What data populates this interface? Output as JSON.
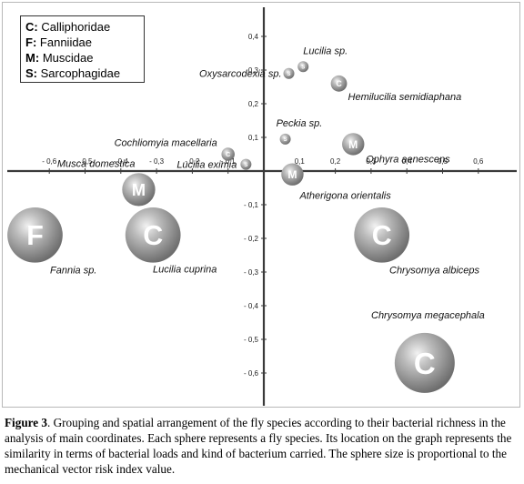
{
  "legend": {
    "items": [
      {
        "code": "C",
        "name": "Calliphoridae"
      },
      {
        "code": "F",
        "name": "Fanniidae"
      },
      {
        "code": "M",
        "name": "Muscidae"
      },
      {
        "code": "S",
        "name": "Sarcophagidae"
      }
    ]
  },
  "caption": {
    "label": "Figure 3",
    "text": ". Grouping and spatial arrangement of the fly species according to their bacterial richness in the analysis of main coordinates. Each sphere represents a fly species. Its location on the graph represents the similarity in terms of bacterial loads and kind of bacterium carried. The sphere size is proportional to the mechanical vector risk index value."
  },
  "chart_data": {
    "type": "scatter",
    "xlim": [
      -0.7,
      0.7
    ],
    "ylim": [
      -0.7,
      0.45
    ],
    "x_ticks": [
      "- 0,6",
      "- 0,5",
      "- 0,4",
      "- 0,3",
      "- 0,2",
      "- 0,1",
      "0,1",
      "0,2",
      "0,3",
      "0,4",
      "0,5",
      "0,6"
    ],
    "x_tick_values": [
      -0.6,
      -0.5,
      -0.4,
      -0.3,
      -0.2,
      -0.1,
      0.1,
      0.2,
      0.3,
      0.4,
      0.5,
      0.6
    ],
    "y_ticks": [
      "0,4",
      "0,3",
      "0,2",
      "0,1",
      "- 0,1",
      "- 0,2",
      "- 0,3",
      "- 0,4",
      "- 0,5",
      "- 0,6"
    ],
    "y_tick_values": [
      0.4,
      0.3,
      0.2,
      0.1,
      -0.1,
      -0.2,
      -0.3,
      -0.4,
      -0.5,
      -0.6
    ],
    "points": [
      {
        "label": "Lucilia sp.",
        "family": "S",
        "x": 0.11,
        "y": 0.31,
        "size": 0.08
      },
      {
        "label": "Oxysarcodexia sp.",
        "family": "S",
        "x": 0.07,
        "y": 0.29,
        "size": 0.08
      },
      {
        "label": "Hemilucilia semidiaphana",
        "family": "C",
        "x": 0.21,
        "y": 0.26,
        "size": 0.27
      },
      {
        "label": "Peckia sp.",
        "family": "S",
        "x": 0.06,
        "y": 0.095,
        "size": 0.08
      },
      {
        "label": "Cochliomyia macellaria",
        "family": "C",
        "x": -0.1,
        "y": 0.05,
        "size": 0.22
      },
      {
        "label": "Ophyra aenescens",
        "family": "M",
        "x": 0.25,
        "y": 0.08,
        "size": 0.37
      },
      {
        "label": "Lucilia eximia",
        "family": "S",
        "x": -0.05,
        "y": 0.02,
        "size": 0.1
      },
      {
        "label": "Musca domestica",
        "family": "M",
        "x": -0.35,
        "y": -0.055,
        "size": 0.55
      },
      {
        "label": "Atherigona orientalis",
        "family": "M",
        "x": 0.08,
        "y": -0.01,
        "size": 0.37
      },
      {
        "label": "Fannia sp.",
        "family": "F",
        "x": -0.64,
        "y": -0.19,
        "size": 0.92
      },
      {
        "label": "Lucilia cuprinha",
        "family": "C",
        "x": -0.31,
        "y": -0.19,
        "size": 0.92
      },
      {
        "label": "Chrysomya albiceps",
        "family": "C",
        "x": 0.33,
        "y": -0.19,
        "size": 0.92
      },
      {
        "label": "Chrysomya megacephala",
        "family": "C",
        "x": 0.45,
        "y": -0.57,
        "size": 1.0
      }
    ],
    "display_labels": {
      "Lucilia sp.": "Lucilia sp.",
      "Oxysarcodexia sp.": "Oxysarcodexia sp.",
      "Hemilucilia semidiaphana": "Hemilucilia semidiaphana",
      "Peckia sp.": "Peckia sp.",
      "Cochliomyia macellaria": "Cochliomyia macellaria",
      "Ophyra aenescens": "Ophyra aenescens",
      "Lucilia eximia": "Lucilia eximia",
      "Musca domestica": "Musca domestica",
      "Atherigona orientalis": "Atherigona orientalis",
      "Fannia sp.": "Fannia sp.",
      "Lucilia cuprinha": "Lucilia cuprina",
      "Chrysomya albiceps": "Chrysomya albiceps",
      "Chrysomya megacephala": "Chrysomya megacephala"
    }
  }
}
